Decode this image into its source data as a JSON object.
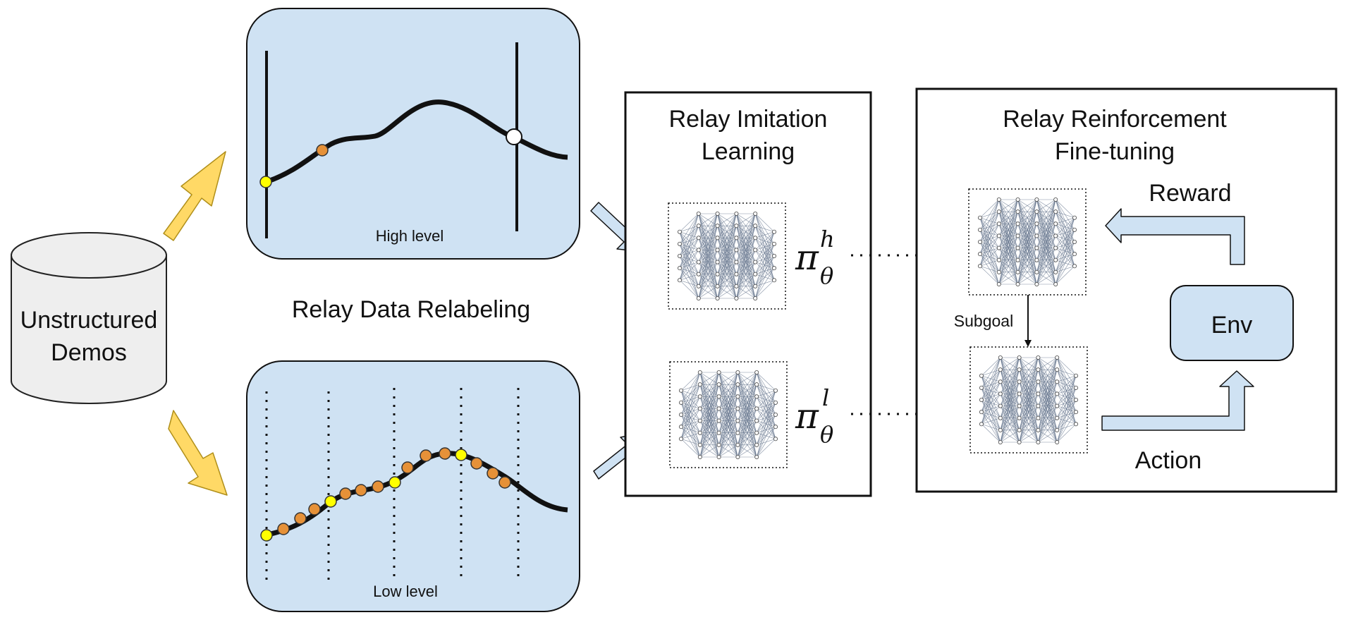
{
  "demos": {
    "label_line1": "Unstructured",
    "label_line2": "Demos"
  },
  "relabel": {
    "title": "Relay Data Relabeling",
    "high_label": "High level",
    "low_label": "Low level"
  },
  "imitation": {
    "title_line1": "Relay Imitation",
    "title_line2": "Learning",
    "policy_high": {
      "symbol": "π",
      "sup": "h",
      "sub": "θ"
    },
    "policy_low": {
      "symbol": "π",
      "sup": "l",
      "sub": "θ"
    }
  },
  "finetune": {
    "title_line1": "Relay Reinforcement",
    "title_line2": "Fine-tuning",
    "reward_label": "Reward",
    "subgoal_label": "Subgoal",
    "env_label": "Env",
    "action_label": "Action"
  },
  "colors": {
    "panel_fill": "#cfe2f3",
    "cylinder_fill": "#eeeeee",
    "yellow_arrow": "#ffd966",
    "yellow_arrow_stroke": "#b08f1a",
    "point_yellow": "#ffff00",
    "point_orange": "#e69138",
    "stroke": "#111111"
  },
  "icons": [
    "database-cylinder-icon",
    "neural-network-icon",
    "right-arrow-icon",
    "bent-arrow-icon"
  ]
}
